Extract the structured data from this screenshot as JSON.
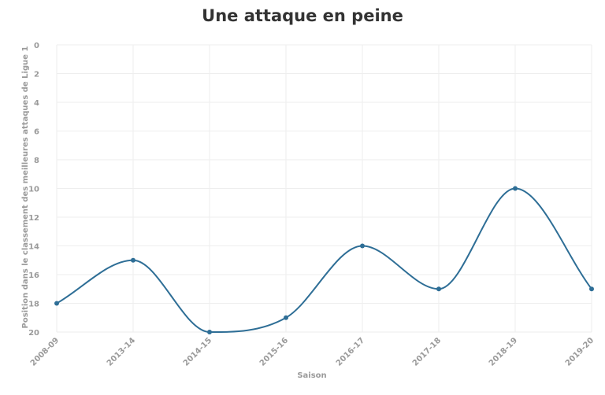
{
  "title": "Une attaque en peine",
  "colors": {
    "line": "#2e6e96",
    "grid": "#eeeeee",
    "text": "#9a9a9a"
  },
  "chart_data": {
    "type": "line",
    "title": "Une attaque en peine",
    "xlabel": "Saison",
    "ylabel": "Position dans le classement des meilleures attaques de Ligue 1",
    "categories": [
      "2008-09",
      "2013-14",
      "2014-15",
      "2015-16",
      "2016-17",
      "2017-18",
      "2018-19",
      "2019-20"
    ],
    "values": [
      18,
      15,
      20,
      19,
      14,
      17,
      10,
      17
    ],
    "ylim": [
      0,
      20
    ],
    "y_axis_reversed": true,
    "yticks": [
      0,
      2,
      4,
      6,
      8,
      10,
      12,
      14,
      16,
      18,
      20
    ],
    "grid": true,
    "curve": "smooth",
    "markers": true
  }
}
